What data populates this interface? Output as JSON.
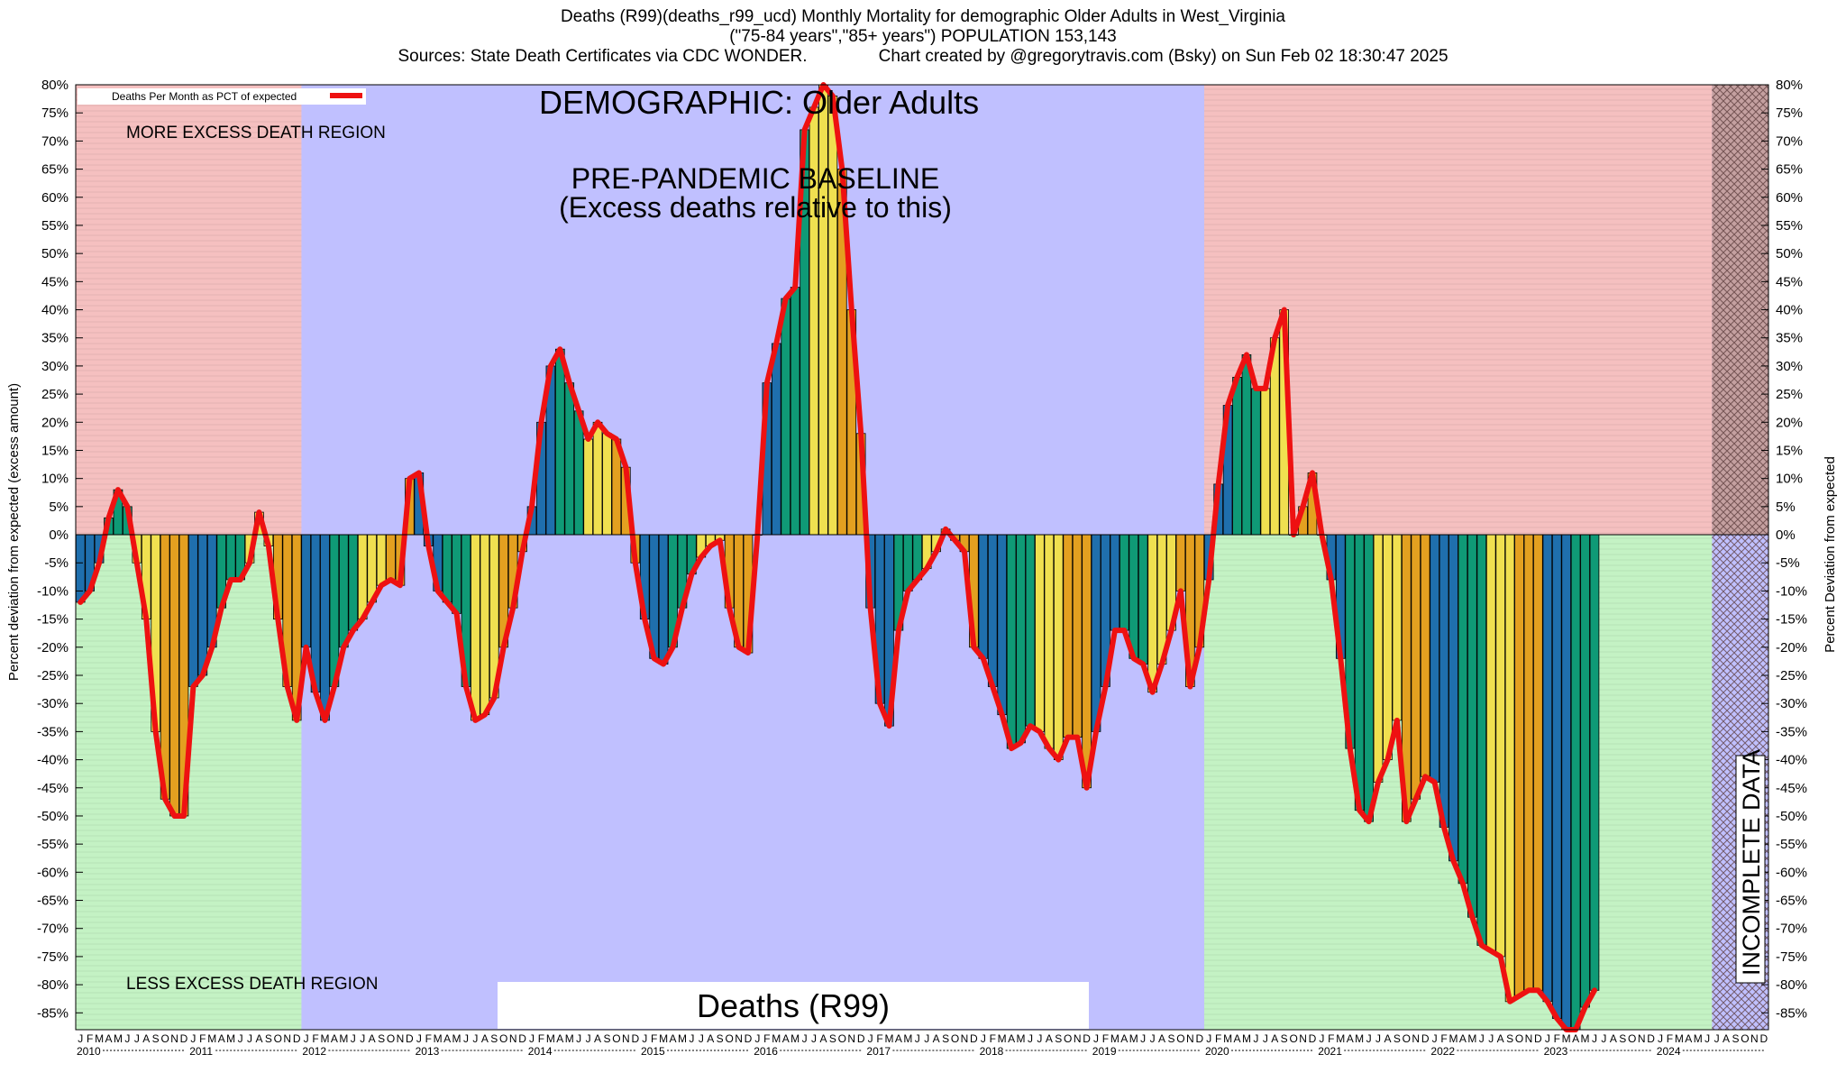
{
  "titles": {
    "line1": "Deaths (R99)(deaths_r99_ucd) Monthly Mortality for demographic Older Adults in West_Virginia",
    "line2": "(\"75-84 years\",\"85+ years\") POPULATION 153,143",
    "line3": "Sources: State Death Certificates via CDC WONDER.               Chart created by @gregorytravis.com (Bsky) on Sun Feb 02 18:30:47 2025"
  },
  "chart_data": {
    "type": "bar",
    "subtype": "bar with overlaid line",
    "heading": "DEMOGRAPHIC: Older Adults",
    "baseline_label_1": "PRE-PANDEMIC BASELINE",
    "baseline_label_2": "(Excess deaths relative to this)",
    "more_region_label": "MORE EXCESS DEATH REGION",
    "less_region_label": "LESS EXCESS DEATH REGION",
    "incomplete_label": "INCOMPLETE DATA",
    "cause_label": "Deaths (R99)",
    "legend_entry": "Deaths Per Month as PCT of expected",
    "legend_placement": "top-left",
    "ylabel_left": "Percent deviation from expected (excess amount)",
    "ylabel_right": "Percent Deviation from expected",
    "ylim": [
      -88,
      80
    ],
    "yticks": [
      80,
      75,
      70,
      65,
      60,
      55,
      50,
      45,
      40,
      35,
      30,
      25,
      20,
      15,
      10,
      5,
      0,
      -5,
      -10,
      -15,
      -20,
      -25,
      -30,
      -35,
      -40,
      -45,
      -50,
      -55,
      -60,
      -65,
      -70,
      -75,
      -80,
      -85
    ],
    "month_letters": [
      "J",
      "F",
      "M",
      "A",
      "M",
      "J",
      "J",
      "A",
      "S",
      "O",
      "N",
      "D"
    ],
    "years": [
      "2010",
      "2011",
      "2012",
      "2013",
      "2014",
      "2015",
      "2016",
      "2017",
      "2018",
      "2019",
      "2020",
      "2021",
      "2022",
      "2023",
      "2024"
    ],
    "baseline_years": [
      "2012",
      "2013",
      "2014",
      "2015",
      "2016",
      "2017",
      "2018",
      "2019"
    ],
    "incomplete_from_month_index": 174,
    "bar_colors_by_month": [
      "#1f6fad",
      "#1f6fad",
      "#1f6fad",
      "#0f9a76",
      "#0f9a76",
      "#0f9a76",
      "#f0e050",
      "#f0e050",
      "#f0e050",
      "#e3a020",
      "#e3a020",
      "#e3a020"
    ],
    "colors": {
      "more_region": "#f5c0c0",
      "less_region": "#c4f2c4",
      "baseline_region": "#c0c0ff",
      "line": "#ee1111",
      "incomplete_hatch": "#c4a0a0"
    },
    "values": [
      -12,
      -10,
      -5,
      3,
      8,
      5,
      -5,
      -15,
      -35,
      -47,
      -50,
      -50,
      -27,
      -25,
      -20,
      -13,
      -8,
      -8,
      -5,
      4,
      -2,
      -15,
      -27,
      -33,
      -20,
      -28,
      -33,
      -27,
      -20,
      -17,
      -15,
      -12,
      -9,
      -8,
      -9,
      10,
      11,
      -2,
      -10,
      -12,
      -14,
      -27,
      -33,
      -32,
      -29,
      -20,
      -13,
      -3,
      5,
      20,
      30,
      33,
      27,
      22,
      17,
      20,
      18,
      17,
      12,
      -5,
      -15,
      -22,
      -23,
      -20,
      -13,
      -7,
      -4,
      -2,
      -1,
      -13,
      -20,
      -21,
      0,
      27,
      34,
      42,
      44,
      72,
      76,
      80,
      78,
      65,
      40,
      18,
      -13,
      -30,
      -34,
      -17,
      -10,
      -8,
      -6,
      -3,
      1,
      -1,
      -3,
      -20,
      -22,
      -27,
      -32,
      -38,
      -37,
      -34,
      -35,
      -38,
      -40,
      -36,
      -36,
      -45,
      -35,
      -27,
      -17,
      -17,
      -22,
      -23,
      -28,
      -23,
      -17,
      -10,
      -27,
      -20,
      -8,
      9,
      23,
      28,
      32,
      26,
      26,
      35,
      40,
      0,
      5,
      11,
      0,
      -8,
      -22,
      -38,
      -49,
      -51,
      -44,
      -40,
      -33,
      -51,
      -47,
      -43,
      -44,
      -52,
      -58,
      -62,
      -68,
      -73,
      -74,
      -75,
      -83,
      -82,
      -81,
      -81,
      -83,
      -86,
      -88,
      -88,
      -84,
      -81
    ]
  }
}
